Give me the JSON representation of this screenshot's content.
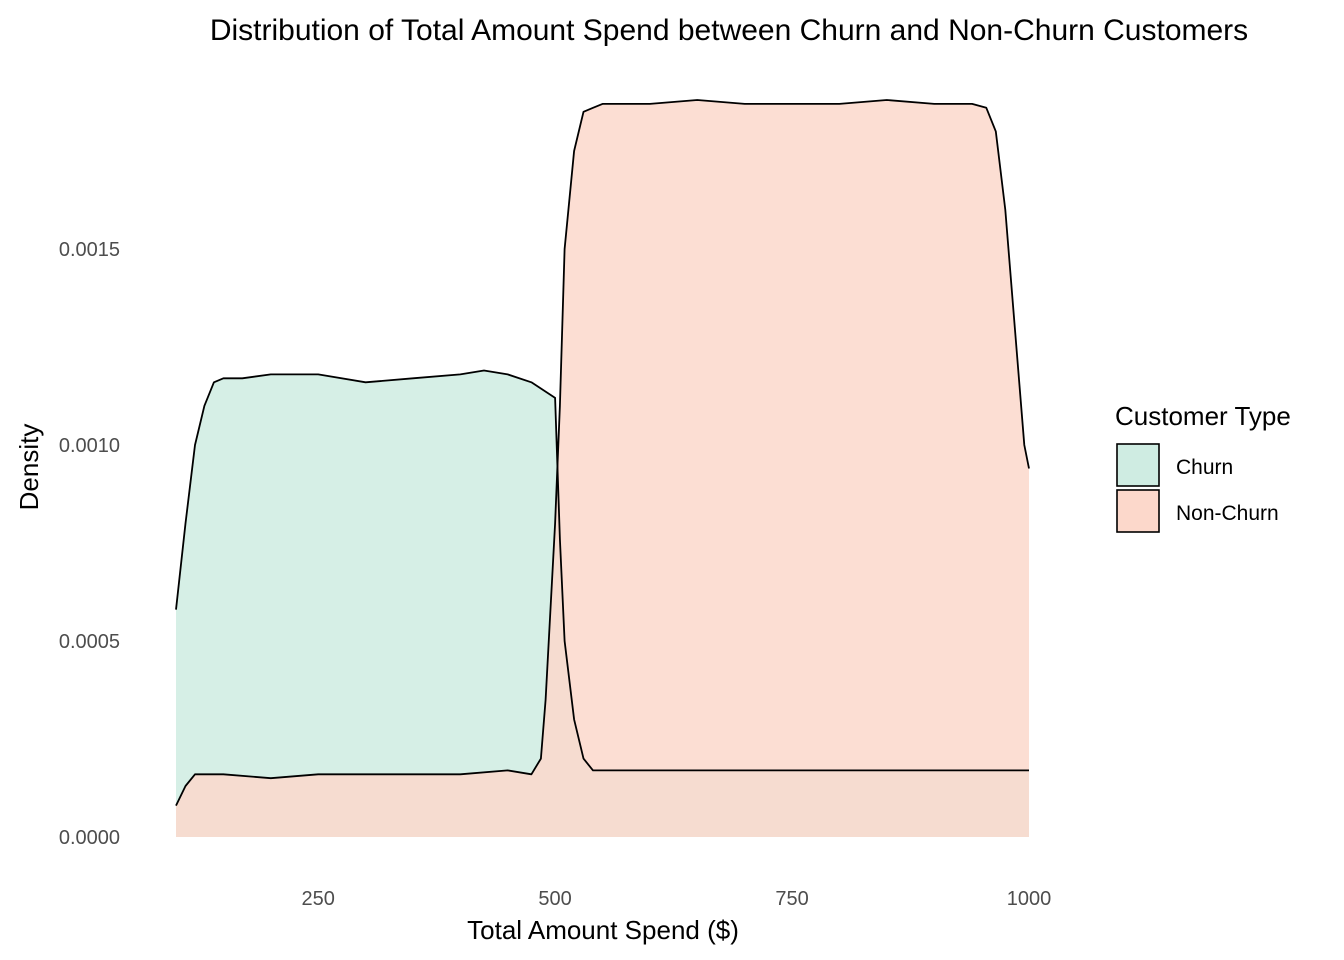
{
  "chart_data": {
    "type": "area",
    "title": "Distribution of Total Amount Spend between Churn and Non-Churn Customers",
    "xlabel": "Total Amount Spend ($)",
    "ylabel": "Density",
    "xlim": [
      100,
      1000
    ],
    "ylim": [
      0,
      0.00188
    ],
    "x_ticks": [
      250,
      500,
      750,
      1000
    ],
    "x_tick_labels": [
      "250",
      "500",
      "750",
      "1000"
    ],
    "y_ticks": [
      0,
      0.0005,
      0.001,
      0.0015
    ],
    "y_tick_labels": [
      "0.0000",
      "0.0005",
      "0.0010",
      "0.0015"
    ],
    "grid": false,
    "legend": {
      "title": "Customer Type",
      "position": "right"
    },
    "series": [
      {
        "name": "Churn",
        "color": "#cfece2",
        "x": [
          100,
          110,
          120,
          130,
          140,
          150,
          170,
          200,
          250,
          300,
          350,
          400,
          425,
          450,
          475,
          500,
          505,
          510,
          520,
          530,
          540,
          550,
          600,
          650,
          700,
          750,
          800,
          850,
          900,
          925,
          950,
          965,
          980,
          990,
          1000
        ],
        "y": [
          0.00058,
          0.0008,
          0.001,
          0.0011,
          0.00116,
          0.00117,
          0.00117,
          0.00118,
          0.00118,
          0.00116,
          0.00117,
          0.00118,
          0.00119,
          0.00118,
          0.00116,
          0.00112,
          0.00076,
          0.0005,
          0.0003,
          0.0002,
          0.00017,
          0.00017,
          0.00017,
          0.00017,
          0.00017,
          0.00017,
          0.00017,
          0.00017,
          0.00017,
          0.00017,
          0.00017,
          0.00017,
          0.00017,
          0.00017,
          0.00017
        ]
      },
      {
        "name": "Non-Churn",
        "color": "#fcd8cb",
        "x": [
          100,
          110,
          120,
          130,
          150,
          200,
          250,
          300,
          350,
          400,
          450,
          475,
          485,
          490,
          500,
          505,
          510,
          520,
          530,
          540,
          550,
          600,
          650,
          700,
          750,
          800,
          850,
          900,
          925,
          940,
          955,
          965,
          975,
          985,
          995,
          1000
        ],
        "y": [
          8e-05,
          0.00013,
          0.00016,
          0.00016,
          0.00016,
          0.00015,
          0.00016,
          0.00016,
          0.00016,
          0.00016,
          0.00017,
          0.00016,
          0.0002,
          0.00035,
          0.0008,
          0.0011,
          0.0015,
          0.00175,
          0.00185,
          0.00186,
          0.00187,
          0.00187,
          0.00188,
          0.00187,
          0.00187,
          0.00187,
          0.00188,
          0.00187,
          0.00187,
          0.00187,
          0.00186,
          0.0018,
          0.0016,
          0.0013,
          0.001,
          0.00094
        ]
      }
    ]
  }
}
